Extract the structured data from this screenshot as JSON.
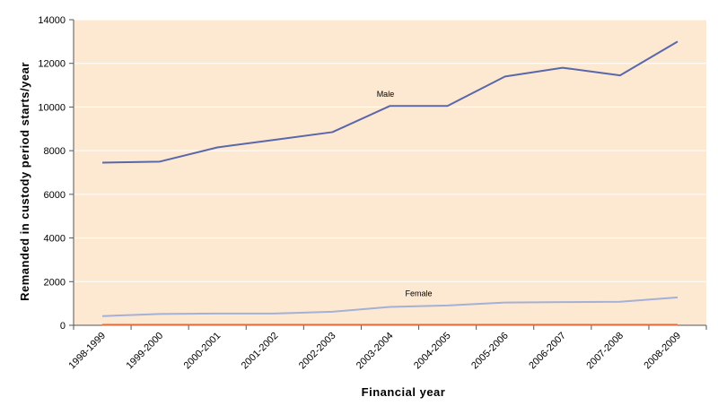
{
  "chart_data": {
    "type": "line",
    "categories": [
      "1998-1999",
      "1999-2000",
      "2000-2001",
      "2001-2002",
      "2002-2003",
      "2003-2004",
      "2004-2005",
      "2005-2006",
      "2006-2007",
      "2007-2008",
      "2008-2009"
    ],
    "series": [
      {
        "name": "Male",
        "color": "#5a67a8",
        "values": [
          7450,
          7500,
          8150,
          8500,
          8850,
          10050,
          10050,
          11400,
          11800,
          11450,
          13000
        ]
      },
      {
        "name": "Female",
        "color": "#a5b0d6",
        "values": [
          420,
          520,
          540,
          540,
          620,
          840,
          910,
          1040,
          1060,
          1080,
          1280
        ]
      },
      {
        "name": "",
        "color": "#e06a3a",
        "values": [
          20,
          20,
          20,
          20,
          20,
          20,
          20,
          20,
          20,
          20,
          20
        ]
      }
    ],
    "xlabel": "Financial year",
    "ylabel": "Remanded in custody period starts/year",
    "ylim": [
      0,
      14000
    ],
    "yticks": [
      0,
      2000,
      4000,
      6000,
      8000,
      10000,
      12000,
      14000
    ],
    "grid": true,
    "plot_background": "#fde9d2"
  }
}
